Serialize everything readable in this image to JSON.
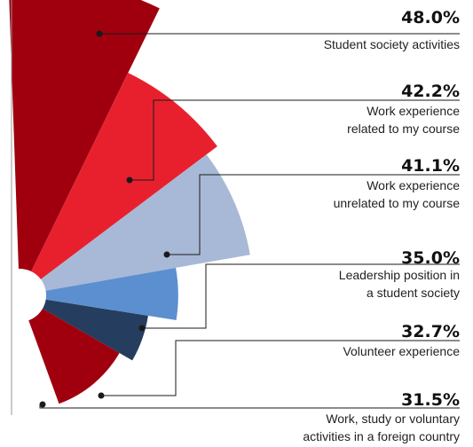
{
  "chart_data": {
    "type": "pie",
    "title": "",
    "unit": "%",
    "colors": [
      "#a0000e",
      "#e8202e",
      "#a7b9d6",
      "#5b8fcf",
      "#253d5f",
      "#a0000e"
    ],
    "categories": [
      "Student society activities",
      "Work experience related to my course",
      "Work experience unrelated to my course",
      "Leadership position in a student society",
      "Volunteer experience",
      "Work, study or voluntary activities in a foreign country"
    ],
    "values": [
      48.0,
      42.2,
      41.1,
      35.0,
      32.7,
      31.5
    ],
    "value_labels": [
      "48.0%",
      "42.2%",
      "41.1%",
      "35.0%",
      "32.7%",
      "31.5%"
    ],
    "label_lines": [
      [
        "Student society activities"
      ],
      [
        "Work experience",
        "related to my course"
      ],
      [
        "Work experience",
        "unrelated to my course"
      ],
      [
        "Leadership position in",
        "a student society"
      ],
      [
        "Volunteer experience"
      ],
      [
        "Work, study or voluntary",
        "activities in a foreign country"
      ]
    ]
  }
}
